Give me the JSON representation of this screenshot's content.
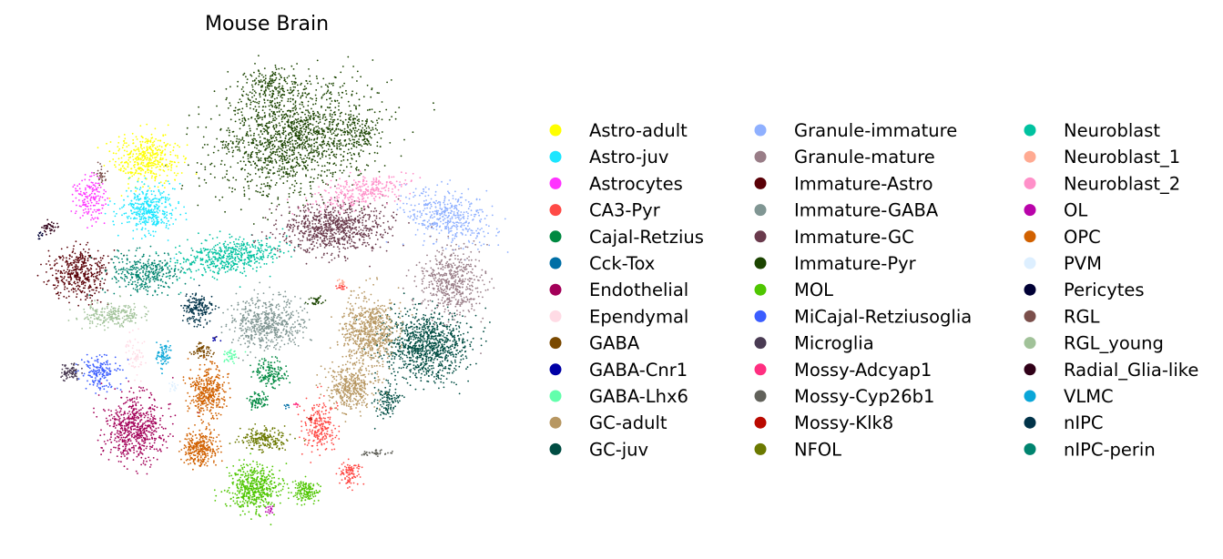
{
  "chart_data": {
    "type": "scatter",
    "title": "Mouse Brain",
    "xlabel": "",
    "ylabel": "",
    "grid": false,
    "axes_visible": false,
    "legend_placement": "right",
    "legend_columns": 3,
    "series": [
      {
        "name": "Astro-adult",
        "color": "#ffff00"
      },
      {
        "name": "Astro-juv",
        "color": "#1ce6ff"
      },
      {
        "name": "Astrocytes",
        "color": "#ff34ff"
      },
      {
        "name": "CA3-Pyr",
        "color": "#ff4a46"
      },
      {
        "name": "Cajal-Retzius",
        "color": "#008941"
      },
      {
        "name": "Cck-Tox",
        "color": "#006fa6"
      },
      {
        "name": "Endothelial",
        "color": "#a30059"
      },
      {
        "name": "Ependymal",
        "color": "#ffdbe5"
      },
      {
        "name": "GABA",
        "color": "#7a4900"
      },
      {
        "name": "GABA-Cnr1",
        "color": "#0000a6"
      },
      {
        "name": "GABA-Lhx6",
        "color": "#63ffac"
      },
      {
        "name": "GC-adult",
        "color": "#b79762"
      },
      {
        "name": "GC-juv",
        "color": "#004d43"
      },
      {
        "name": "Granule-immature",
        "color": "#8fb0ff"
      },
      {
        "name": "Granule-mature",
        "color": "#997d87"
      },
      {
        "name": "Immature-Astro",
        "color": "#5a0007"
      },
      {
        "name": "Immature-GABA",
        "color": "#809693"
      },
      {
        "name": "Immature-GC",
        "color": "#6a3a4c"
      },
      {
        "name": "Immature-Pyr",
        "color": "#1b4400"
      },
      {
        "name": "MOL",
        "color": "#4fc601"
      },
      {
        "name": "MiCajal-Retziusoglia",
        "color": "#3b5dff"
      },
      {
        "name": "Microglia",
        "color": "#4a3b53"
      },
      {
        "name": "Mossy-Adcyap1",
        "color": "#ff2f80"
      },
      {
        "name": "Mossy-Cyp26b1",
        "color": "#61615a"
      },
      {
        "name": "Mossy-Klk8",
        "color": "#ba0900"
      },
      {
        "name": "NFOL",
        "color": "#6b7900"
      },
      {
        "name": "Neuroblast",
        "color": "#00c2a0"
      },
      {
        "name": "Neuroblast_1",
        "color": "#ffaa92"
      },
      {
        "name": "Neuroblast_2",
        "color": "#ff90c9"
      },
      {
        "name": "OL",
        "color": "#b903aa"
      },
      {
        "name": "OPC",
        "color": "#d16100"
      },
      {
        "name": "PVM",
        "color": "#ddefff"
      },
      {
        "name": "Pericytes",
        "color": "#000035"
      },
      {
        "name": "RGL",
        "color": "#7b4f4b"
      },
      {
        "name": "RGL_young",
        "color": "#a1c299"
      },
      {
        "name": "Radial_Glia-like",
        "color": "#300018"
      },
      {
        "name": "VLMC",
        "color": "#0aa6d8"
      },
      {
        "name": "nIPC",
        "color": "#013349"
      },
      {
        "name": "nIPC-perin",
        "color": "#00846f"
      }
    ]
  }
}
